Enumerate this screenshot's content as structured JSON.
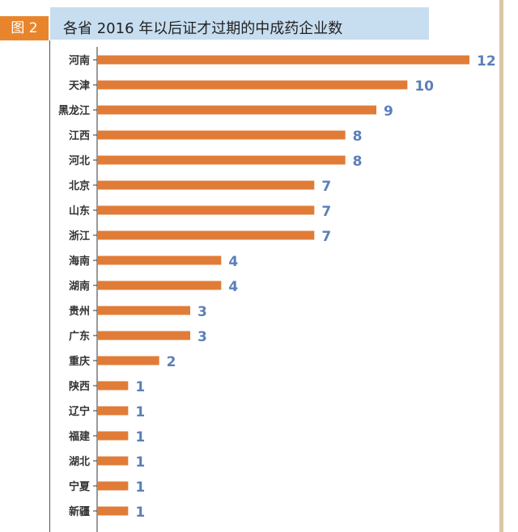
{
  "figure_label": "图 2",
  "title": "各省 2016 年以后证才过期的中成药企业数",
  "colors": {
    "bar": "#e07c37",
    "value_label": "#5b7fb9",
    "axis": "#333333",
    "category_label": "#333333"
  },
  "chart_data": {
    "type": "bar",
    "orientation": "horizontal",
    "title": "各省 2016 年以后证才过期的中成药企业数",
    "xlabel": "",
    "ylabel": "",
    "xlim": [
      0,
      12
    ],
    "grid": false,
    "legend": "none",
    "categories": [
      "河南",
      "天津",
      "黑龙江",
      "江西",
      "河北",
      "北京",
      "山东",
      "浙江",
      "海南",
      "湖南",
      "贵州",
      "广东",
      "重庆",
      "陕西",
      "辽宁",
      "福建",
      "湖北",
      "宁夏",
      "新疆"
    ],
    "values": [
      12,
      10,
      9,
      8,
      8,
      7,
      7,
      7,
      4,
      4,
      3,
      3,
      2,
      1,
      1,
      1,
      1,
      1,
      1
    ]
  }
}
